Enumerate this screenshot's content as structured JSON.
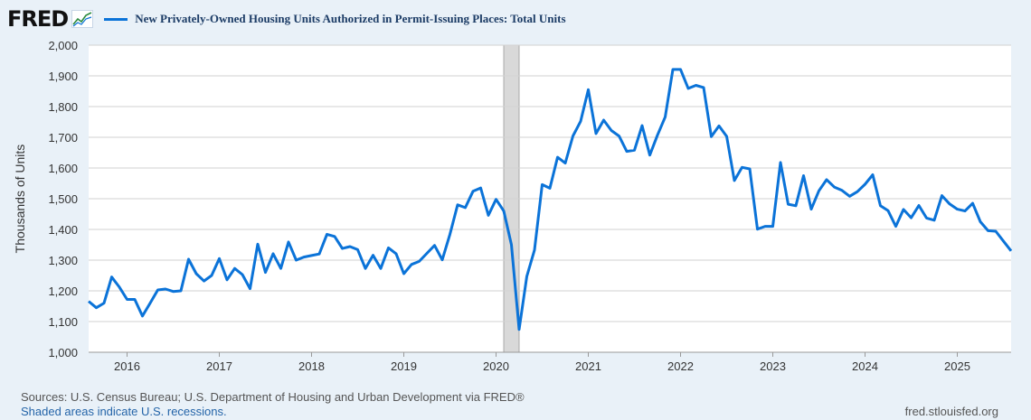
{
  "header": {
    "logo_text": "FRED",
    "logo_icon": "fred-chart-icon",
    "series_title": "New Privately-Owned Housing Units Authorized in Permit-Issuing Places: Total Units",
    "series_color": "#0b73d8"
  },
  "footer": {
    "sources": "Sources: U.S. Census Bureau; U.S. Department of Housing and Urban Development via FRED®",
    "shaded_note": "Shaded areas indicate U.S. recessions.",
    "site": "fred.stlouisfed.org"
  },
  "chart_data": {
    "type": "line",
    "title": "New Privately-Owned Housing Units Authorized in Permit-Issuing Places: Total Units",
    "ylabel": "Thousands of Units",
    "xlabel": "",
    "ylim": [
      1000,
      2000
    ],
    "yticks": [
      1000,
      1100,
      1200,
      1300,
      1400,
      1500,
      1600,
      1700,
      1800,
      1900,
      2000
    ],
    "ytick_labels": [
      "1,000",
      "1,100",
      "1,200",
      "1,300",
      "1,400",
      "1,500",
      "1,600",
      "1,700",
      "1,800",
      "1,900",
      "2,000"
    ],
    "xlim": [
      "2015-08",
      "2025-08"
    ],
    "xticks": [
      "2016",
      "2017",
      "2018",
      "2019",
      "2020",
      "2021",
      "2022",
      "2023",
      "2024",
      "2025"
    ],
    "grid": "horizontal",
    "recession": {
      "start": "2020-02",
      "end": "2020-04",
      "color": "#d9d9d9"
    },
    "series": [
      {
        "color": "#0b73d8",
        "start": "2015-08",
        "frequency": "monthly",
        "values": [
          1166,
          1145,
          1160,
          1245,
          1212,
          1172,
          1172,
          1118,
          1160,
          1203,
          1206,
          1198,
          1200,
          1303,
          1256,
          1232,
          1250,
          1305,
          1236,
          1273,
          1253,
          1207,
          1352,
          1260,
          1321,
          1273,
          1359,
          1300,
          1310,
          1315,
          1320,
          1384,
          1377,
          1338,
          1344,
          1334,
          1273,
          1316,
          1273,
          1340,
          1321,
          1256,
          1286,
          1296,
          1322,
          1348,
          1301,
          1384,
          1480,
          1471,
          1524,
          1535,
          1446,
          1498,
          1460,
          1350,
          1074,
          1247,
          1333,
          1546,
          1534,
          1635,
          1616,
          1704,
          1752,
          1855,
          1712,
          1756,
          1722,
          1704,
          1654,
          1658,
          1738,
          1642,
          1707,
          1766,
          1921,
          1921,
          1859,
          1869,
          1862,
          1702,
          1737,
          1703,
          1559,
          1602,
          1597,
          1401,
          1410,
          1410,
          1618,
          1482,
          1477,
          1575,
          1466,
          1526,
          1562,
          1538,
          1527,
          1508,
          1523,
          1547,
          1578,
          1477,
          1461,
          1410,
          1465,
          1438,
          1478,
          1437,
          1430,
          1510,
          1483,
          1466,
          1460,
          1485,
          1425,
          1396,
          1394,
          1362,
          1330
        ]
      }
    ]
  }
}
